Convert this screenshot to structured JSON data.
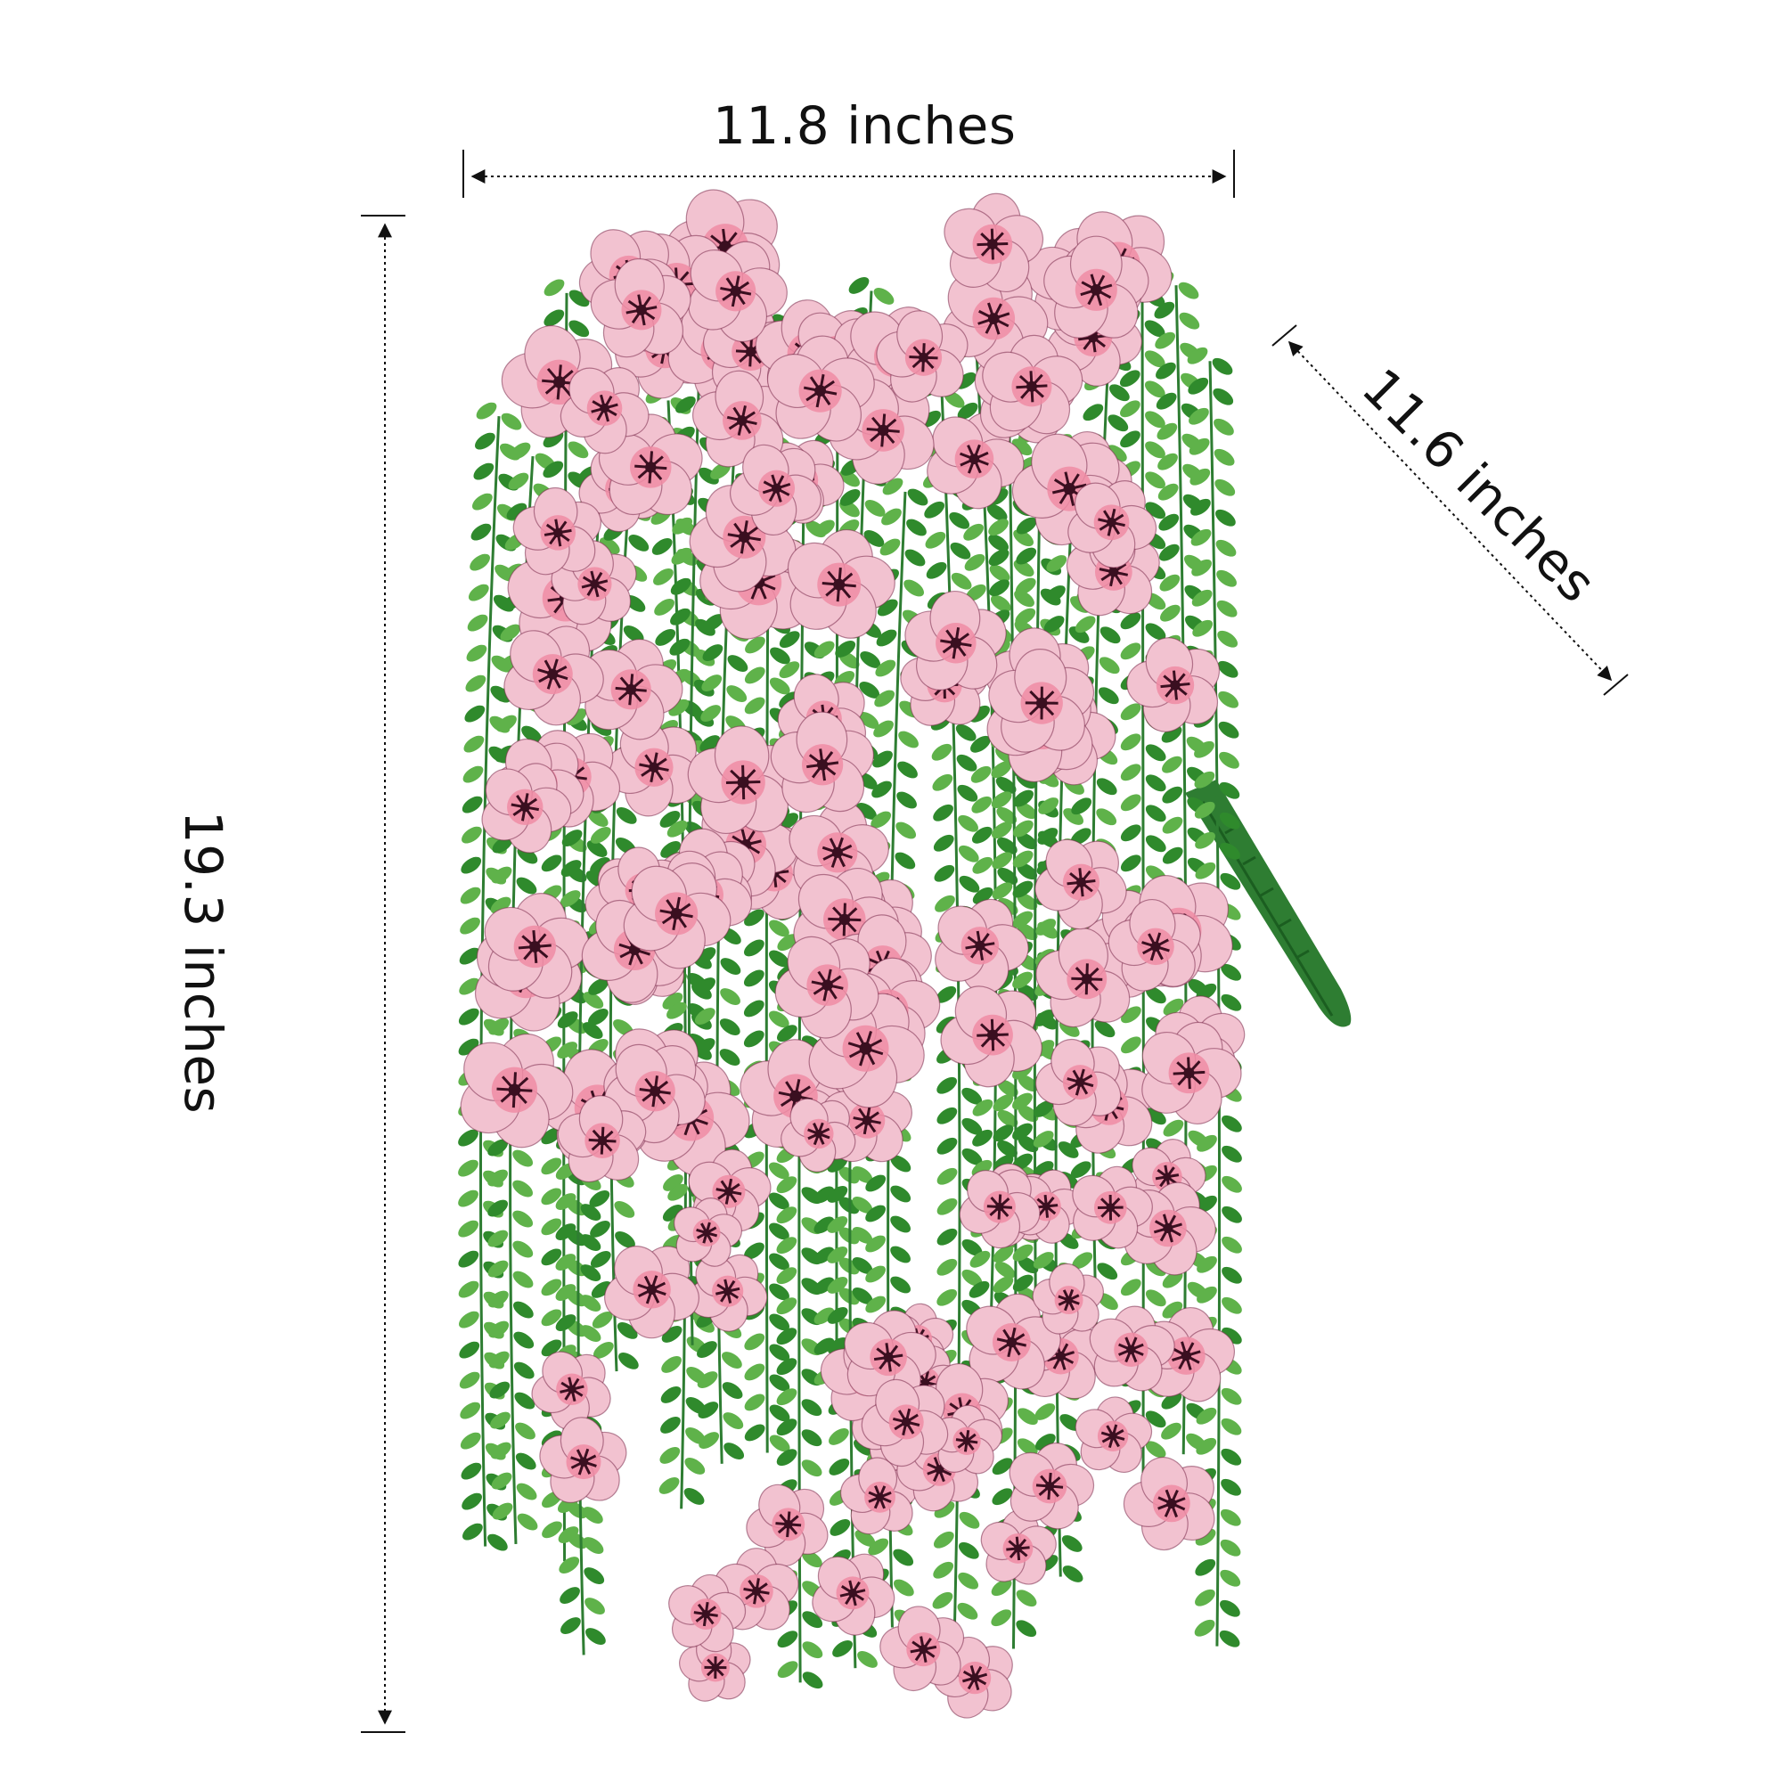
{
  "dimensions": {
    "width_label": "11.8 inches",
    "depth_label": "11.6 inches",
    "height_label": "19.3 inches"
  },
  "product": {
    "icon": "hanging-flower-bush",
    "colors": {
      "petal": "#f2c2d0",
      "petal_center": "#f08ca4",
      "vein": "#7a2a4a",
      "throat": "#3a0f20",
      "leaf": "#2f8a2c",
      "leaf_light": "#5fb24a",
      "stem": "#2e7d32"
    }
  }
}
